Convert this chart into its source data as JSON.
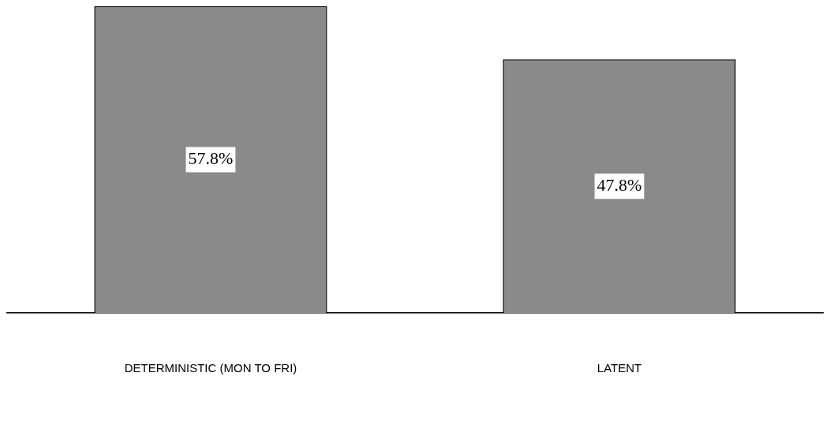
{
  "chart_data": {
    "type": "bar",
    "categories": [
      "DETERMINISTIC (MON TO FRI)",
      "LATENT"
    ],
    "values": [
      57.8,
      47.8
    ],
    "value_labels": [
      "57.8%",
      "47.8%"
    ],
    "color": "#8a8a8a",
    "grid": false,
    "legend": false
  }
}
